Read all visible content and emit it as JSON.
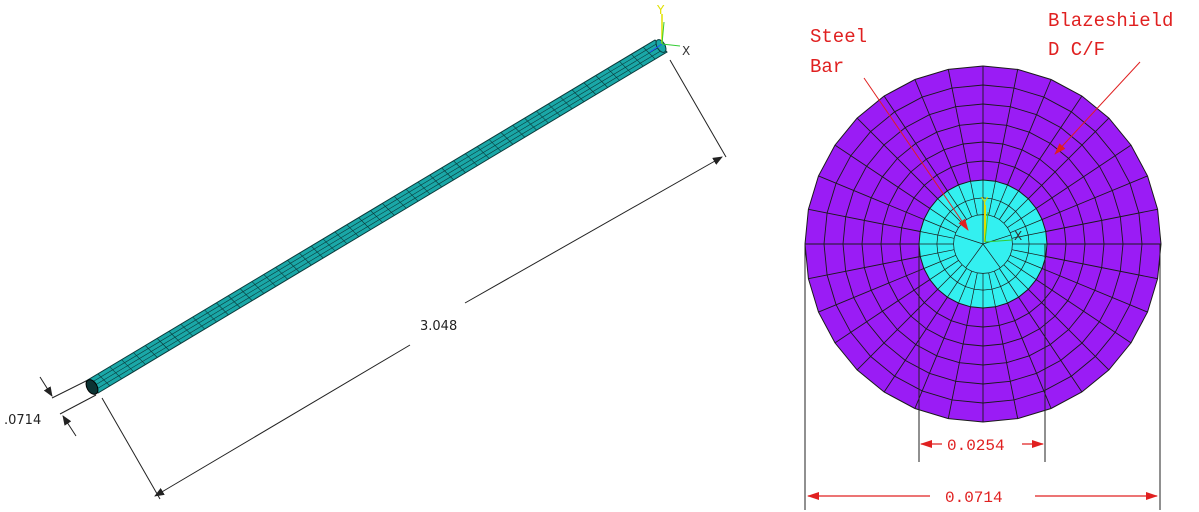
{
  "left_view": {
    "length_label": "3.048",
    "diameter_label": ".0714",
    "axis_x": "X",
    "axis_y": "Y"
  },
  "right_view": {
    "steel_label_line1": "Steel",
    "steel_label_line2": "Bar",
    "blaze_label_line1": "Blazeshield",
    "blaze_label_line2": "D C/F",
    "inner_diameter_label": "0.0254",
    "outer_diameter_label": "0.0714",
    "axis_x": "X",
    "axis_y": "Y"
  },
  "colors": {
    "rod_fill": "#1aa7a7",
    "rod_mesh": "#0a3a3a",
    "outer_region": "#9a1cf5",
    "inner_region": "#33f0f0",
    "mesh_line": "#1a1a1a",
    "red_annotation": "#e02020",
    "dim_line": "#222222",
    "axis_green": "#33cc33",
    "axis_yellow": "#e0e000"
  }
}
